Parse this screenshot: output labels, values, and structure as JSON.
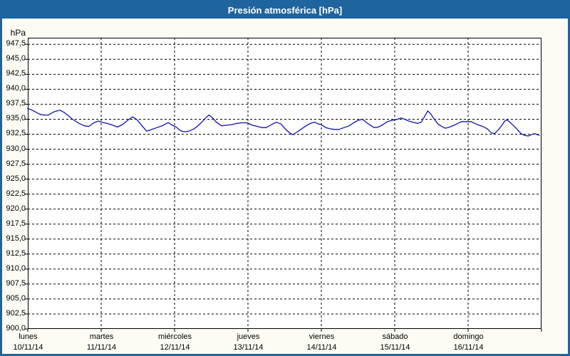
{
  "title": "Presión atmosférica [hPa]",
  "colors": {
    "frame_blue": "#1e649e",
    "title_text": "#ffffff",
    "background": "#fcfcf5",
    "plot_background": "#ffffff",
    "grid": "#000000",
    "line": "#1010b0"
  },
  "chart_data": {
    "type": "line",
    "title": "Presión atmosférica [hPa]",
    "ylabel": "hPa",
    "xlabel": "",
    "ylim": [
      900,
      948.6
    ],
    "y_tick_step": 2.5,
    "grid": true,
    "legend": "none",
    "decimal_separator": ",",
    "x_unit": "days from 10/11/14 00:00",
    "y_ticks": [
      {
        "label": "947,5",
        "value": 947.5
      },
      {
        "label": "945,0",
        "value": 945.0
      },
      {
        "label": "942,5",
        "value": 942.5
      },
      {
        "label": "940,0",
        "value": 940.0
      },
      {
        "label": "937,5",
        "value": 937.5
      },
      {
        "label": "935,0",
        "value": 935.0
      },
      {
        "label": "932,5",
        "value": 932.5
      },
      {
        "label": "930,0",
        "value": 930.0
      },
      {
        "label": "927,5",
        "value": 927.5
      },
      {
        "label": "925,0",
        "value": 925.0
      },
      {
        "label": "922,5",
        "value": 922.5
      },
      {
        "label": "920,0",
        "value": 920.0
      },
      {
        "label": "917,5",
        "value": 917.5
      },
      {
        "label": "915,0",
        "value": 915.0
      },
      {
        "label": "912,5",
        "value": 912.5
      },
      {
        "label": "910,0",
        "value": 910.0
      },
      {
        "label": "907,5",
        "value": 907.5
      },
      {
        "label": "905,0",
        "value": 905.0
      },
      {
        "label": "902,5",
        "value": 902.5
      },
      {
        "label": "900,0",
        "value": 900.0
      }
    ],
    "x_days": [
      {
        "name": "lunes",
        "date": "10/11/14"
      },
      {
        "name": "martes",
        "date": "11/11/14"
      },
      {
        "name": "miércoles",
        "date": "12/11/14"
      },
      {
        "name": "jueves",
        "date": "13/11/14"
      },
      {
        "name": "viernes",
        "date": "14/11/14"
      },
      {
        "name": "sábado",
        "date": "15/11/14"
      },
      {
        "name": "domingo",
        "date": "16/11/14"
      }
    ],
    "series": [
      {
        "name": "Presión atmosférica",
        "color": "#1010b0",
        "points": [
          [
            0.0,
            936.8
          ],
          [
            0.06,
            936.5
          ],
          [
            0.11,
            936.2
          ],
          [
            0.17,
            935.8
          ],
          [
            0.23,
            935.7
          ],
          [
            0.28,
            935.7
          ],
          [
            0.35,
            936.2
          ],
          [
            0.4,
            936.4
          ],
          [
            0.44,
            936.5
          ],
          [
            0.5,
            936.1
          ],
          [
            0.55,
            935.6
          ],
          [
            0.61,
            935.0
          ],
          [
            0.7,
            934.3
          ],
          [
            0.77,
            933.9
          ],
          [
            0.83,
            933.8
          ],
          [
            0.9,
            934.4
          ],
          [
            0.96,
            934.7
          ],
          [
            1.01,
            934.5
          ],
          [
            1.08,
            934.3
          ],
          [
            1.16,
            934.0
          ],
          [
            1.22,
            933.7
          ],
          [
            1.29,
            934.1
          ],
          [
            1.37,
            934.9
          ],
          [
            1.43,
            935.4
          ],
          [
            1.49,
            934.9
          ],
          [
            1.55,
            934.0
          ],
          [
            1.62,
            933.0
          ],
          [
            1.69,
            933.3
          ],
          [
            1.76,
            933.6
          ],
          [
            1.83,
            933.9
          ],
          [
            1.89,
            934.3
          ],
          [
            1.92,
            934.4
          ],
          [
            1.97,
            934.0
          ],
          [
            2.02,
            933.7
          ],
          [
            2.08,
            933.1
          ],
          [
            2.13,
            932.9
          ],
          [
            2.19,
            933.0
          ],
          [
            2.25,
            933.3
          ],
          [
            2.3,
            933.7
          ],
          [
            2.37,
            934.5
          ],
          [
            2.43,
            935.3
          ],
          [
            2.47,
            935.7
          ],
          [
            2.52,
            935.2
          ],
          [
            2.57,
            934.5
          ],
          [
            2.64,
            933.9
          ],
          [
            2.71,
            934.0
          ],
          [
            2.78,
            934.1
          ],
          [
            2.85,
            934.3
          ],
          [
            2.91,
            934.4
          ],
          [
            2.99,
            934.4
          ],
          [
            3.06,
            934.0
          ],
          [
            3.13,
            933.8
          ],
          [
            3.19,
            933.6
          ],
          [
            3.25,
            933.6
          ],
          [
            3.32,
            934.1
          ],
          [
            3.39,
            934.5
          ],
          [
            3.45,
            934.2
          ],
          [
            3.5,
            933.5
          ],
          [
            3.56,
            932.8
          ],
          [
            3.61,
            932.4
          ],
          [
            3.66,
            932.8
          ],
          [
            3.72,
            933.3
          ],
          [
            3.78,
            933.8
          ],
          [
            3.85,
            934.3
          ],
          [
            3.91,
            934.5
          ],
          [
            3.96,
            934.2
          ],
          [
            4.0,
            934.1
          ],
          [
            4.06,
            933.6
          ],
          [
            4.12,
            933.4
          ],
          [
            4.18,
            933.3
          ],
          [
            4.24,
            933.3
          ],
          [
            4.31,
            933.6
          ],
          [
            4.38,
            933.9
          ],
          [
            4.44,
            934.4
          ],
          [
            4.5,
            934.8
          ],
          [
            4.56,
            935.0
          ],
          [
            4.62,
            934.4
          ],
          [
            4.68,
            933.9
          ],
          [
            4.72,
            933.6
          ],
          [
            4.78,
            933.7
          ],
          [
            4.84,
            934.1
          ],
          [
            4.9,
            934.6
          ],
          [
            4.96,
            934.8
          ],
          [
            5.0,
            934.9
          ],
          [
            5.04,
            935.0
          ],
          [
            5.08,
            935.2
          ],
          [
            5.14,
            935.0
          ],
          [
            5.19,
            934.7
          ],
          [
            5.25,
            934.5
          ],
          [
            5.31,
            934.3
          ],
          [
            5.36,
            934.5
          ],
          [
            5.41,
            935.5
          ],
          [
            5.45,
            936.4
          ],
          [
            5.49,
            935.9
          ],
          [
            5.54,
            935.0
          ],
          [
            5.59,
            934.2
          ],
          [
            5.64,
            933.8
          ],
          [
            5.69,
            933.5
          ],
          [
            5.75,
            933.7
          ],
          [
            5.81,
            934.0
          ],
          [
            5.86,
            934.3
          ],
          [
            5.91,
            934.6
          ],
          [
            5.98,
            934.6
          ],
          [
            6.04,
            934.6
          ],
          [
            6.09,
            934.3
          ],
          [
            6.15,
            934.0
          ],
          [
            6.2,
            933.8
          ],
          [
            6.26,
            933.4
          ],
          [
            6.32,
            932.7
          ],
          [
            6.36,
            932.6
          ],
          [
            6.41,
            933.2
          ],
          [
            6.46,
            934.0
          ],
          [
            6.5,
            934.7
          ],
          [
            6.53,
            934.9
          ],
          [
            6.57,
            934.5
          ],
          [
            6.62,
            933.9
          ],
          [
            6.67,
            933.3
          ],
          [
            6.72,
            932.6
          ],
          [
            6.77,
            932.3
          ],
          [
            6.82,
            932.2
          ],
          [
            6.86,
            932.4
          ],
          [
            6.9,
            932.6
          ],
          [
            6.93,
            932.5
          ],
          [
            6.97,
            932.3
          ]
        ]
      }
    ]
  }
}
